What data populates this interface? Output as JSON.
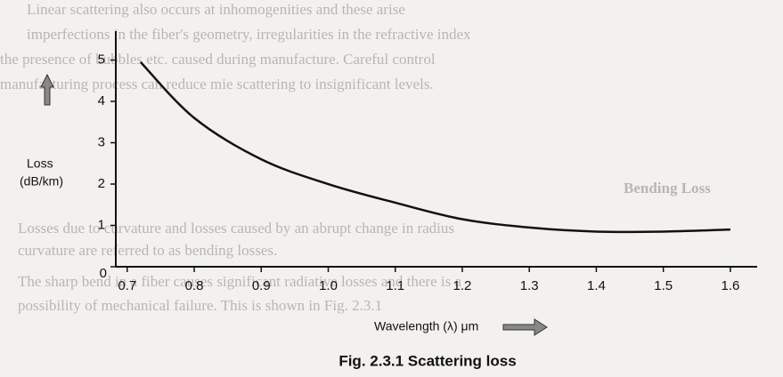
{
  "background_text": [
    "Linear scattering also occurs at inhomogenities and these arise",
    "imperfections in the fiber's geometry, irregularities in the refractive index",
    "the presence of bubbles etc. caused during manufacture. Careful control",
    "manufacturing process can reduce mie scattering to insignificant levels.",
    "Bending Loss",
    "Losses due to curvature and losses caused by an abrupt change in radius",
    "curvature are referred to as bending losses.",
    "The sharp bend in a fiber causes significant radiative losses and there is a",
    "possibility of mechanical failure. This is shown in Fig. 2.3.1"
  ],
  "chart_data": {
    "type": "line",
    "y_label": [
      "Loss",
      "(dB/km)"
    ],
    "x_label": "Wavelength (λ) μm",
    "caption": "Fig. 2.3.1 Scattering loss",
    "x": [
      0.72,
      0.8,
      0.9,
      1.0,
      1.1,
      1.2,
      1.3,
      1.4,
      1.5,
      1.6
    ],
    "series": [
      {
        "color": "#111111",
        "values": [
          4.95,
          3.6,
          2.6,
          2.0,
          1.55,
          1.15,
          0.95,
          0.85,
          0.85,
          0.9
        ]
      }
    ],
    "xlim": [
      0.683,
      1.64
    ],
    "ylim": [
      0,
      5.7
    ],
    "xticks": [
      0.7,
      0.8,
      0.9,
      {
        "value": 1.0,
        "label": "1.0"
      },
      1.1,
      1.2,
      1.3,
      1.4,
      1.5,
      1.6
    ],
    "yticks": [
      0,
      1,
      2,
      3,
      4,
      5
    ]
  }
}
